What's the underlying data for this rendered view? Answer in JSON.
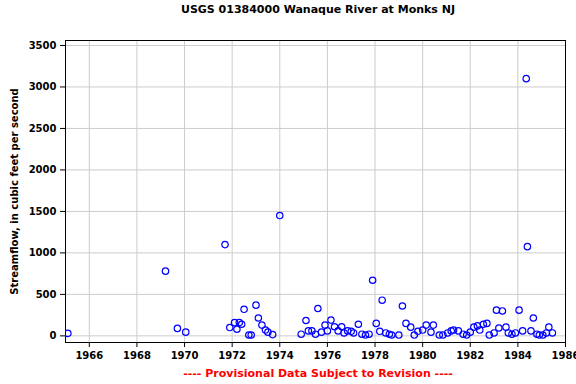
{
  "chart_data": {
    "type": "scatter",
    "title": "USGS 01384000 Wanaque River at Monks NJ",
    "caption": "---- Provisional Data Subject to Revision ----",
    "y_label": "Streamflow, in cubic feet per second",
    "color": "#0000ff",
    "marker": "circle",
    "grid": true,
    "xlim": [
      1965,
      1986
    ],
    "xticks": [
      1966,
      1968,
      1970,
      1972,
      1974,
      1976,
      1978,
      1980,
      1982,
      1984,
      1986
    ],
    "ylim": [
      -80,
      3560
    ],
    "yticks": [
      0,
      500,
      1000,
      1500,
      2000,
      2500,
      3000,
      3500
    ],
    "x": [
      1965.1,
      1969.2,
      1969.7,
      1970.05,
      1971.7,
      1971.9,
      1972.1,
      1972.2,
      1972.3,
      1972.4,
      1972.5,
      1972.7,
      1972.8,
      1973.0,
      1973.1,
      1973.25,
      1973.4,
      1973.5,
      1973.7,
      1974.0,
      1974.9,
      1975.1,
      1975.2,
      1975.35,
      1975.5,
      1975.6,
      1975.75,
      1975.9,
      1976.0,
      1976.15,
      1976.3,
      1976.45,
      1976.6,
      1976.7,
      1976.85,
      1977.0,
      1977.1,
      1977.3,
      1977.45,
      1977.6,
      1977.75,
      1977.9,
      1978.05,
      1978.2,
      1978.3,
      1978.45,
      1978.6,
      1978.7,
      1979.0,
      1979.15,
      1979.3,
      1979.5,
      1979.65,
      1979.8,
      1980.0,
      1980.15,
      1980.35,
      1980.45,
      1980.7,
      1980.85,
      1981.05,
      1981.2,
      1981.3,
      1981.5,
      1981.7,
      1981.85,
      1982.0,
      1982.15,
      1982.3,
      1982.4,
      1982.55,
      1982.7,
      1982.8,
      1983.0,
      1983.1,
      1983.2,
      1983.35,
      1983.5,
      1983.6,
      1983.75,
      1983.9,
      1984.05,
      1984.2,
      1984.35,
      1984.4,
      1984.55,
      1984.65,
      1984.8,
      1984.9,
      1985.05,
      1985.2,
      1985.3,
      1985.45
    ],
    "values": [
      30,
      780,
      90,
      45,
      1100,
      100,
      160,
      80,
      160,
      140,
      320,
      10,
      10,
      370,
      215,
      130,
      70,
      45,
      15,
      1450,
      20,
      185,
      60,
      60,
      20,
      330,
      45,
      130,
      60,
      190,
      110,
      60,
      110,
      35,
      60,
      55,
      35,
      140,
      20,
      10,
      20,
      670,
      150,
      55,
      430,
      35,
      20,
      10,
      10,
      360,
      150,
      105,
      10,
      55,
      70,
      130,
      45,
      130,
      10,
      10,
      35,
      60,
      70,
      60,
      20,
      10,
      45,
      105,
      120,
      70,
      140,
      150,
      10,
      35,
      310,
      95,
      300,
      105,
      35,
      20,
      35,
      310,
      60,
      3100,
      1075,
      60,
      215,
      20,
      10,
      10,
      35,
      105,
      35
    ]
  }
}
